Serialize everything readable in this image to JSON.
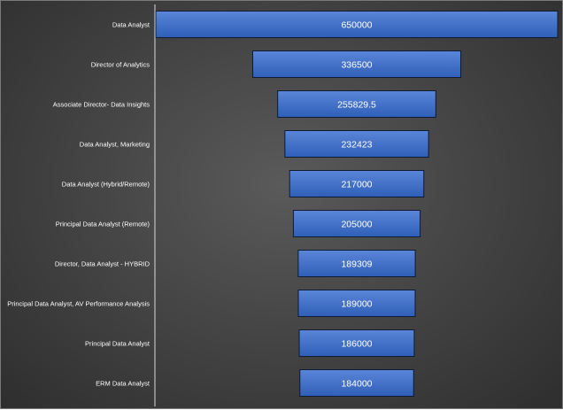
{
  "chart_data": {
    "type": "bar",
    "orientation": "horizontal",
    "style": "funnel",
    "categories": [
      "Data Analyst",
      "Director of Analytics",
      "Associate Director- Data Insights",
      "Data Analyst, Marketing",
      "Data Analyst (Hybrid/Remote)",
      "Principal Data Analyst (Remote)",
      "Director, Data Analyst - HYBRID",
      "Principal Data Analyst, AV Performance Analysis",
      "Principal Data Analyst",
      "ERM Data Analyst"
    ],
    "values": [
      650000,
      336500,
      255829.5,
      232423,
      217000,
      205000,
      189309,
      189000,
      186000,
      184000
    ],
    "value_labels": [
      "650000",
      "336500",
      "255829.5",
      "232423",
      "217000",
      "205000",
      "189309",
      "189000",
      "186000",
      "184000"
    ],
    "title": "",
    "xlabel": "",
    "ylabel": "",
    "grid": false,
    "legend": "none",
    "colors": {
      "bar_top": "#5b86d8",
      "bar_bottom": "#2f5fb8",
      "bar_border": "#0d1b33",
      "text": "#ffffff",
      "axis_line": "#d9d9d9"
    }
  }
}
